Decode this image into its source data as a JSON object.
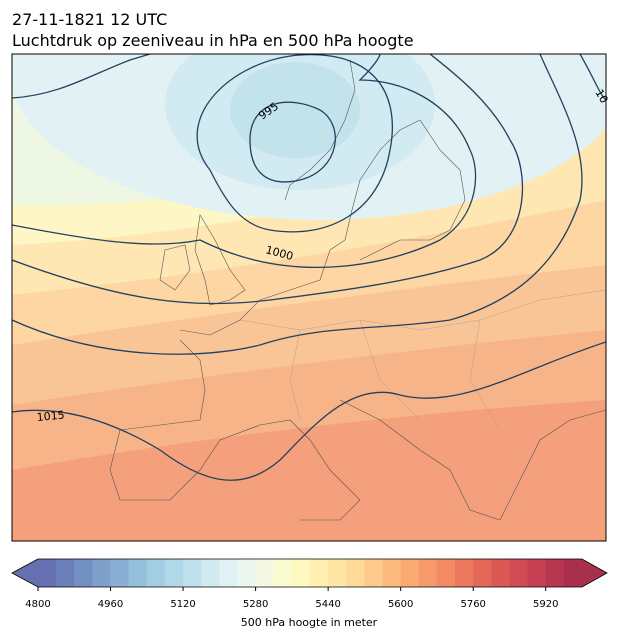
{
  "header": {
    "datetime": "27-11-1821 12 UTC",
    "title": "Luchtdruk op zeeniveau in hPa en 500 hPa hoogte"
  },
  "map": {
    "contour_labels": [
      995,
      1000,
      1015,
      "10"
    ]
  },
  "colorbar": {
    "label": "500 hPa hoogte in meter",
    "lim": [
      4800,
      6000
    ],
    "ticks": [
      4800,
      4960,
      5120,
      5280,
      5440,
      5600,
      5760,
      5920
    ],
    "colors": [
      "#6570b0",
      "#6b80b9",
      "#7390c2",
      "#7ea0cb",
      "#89b0d4",
      "#95c0dc",
      "#a3cde3",
      "#b1d8e9",
      "#c0e2ee",
      "#d0eaf2",
      "#dff1f3",
      "#ebf6ef",
      "#f5f9e3",
      "#fbfbd2",
      "#fff8c0",
      "#fff0b1",
      "#fee6a4",
      "#fed998",
      "#fdca8b",
      "#fcba7f",
      "#fbaa73",
      "#f79a6b",
      "#f28a63",
      "#ec795d",
      "#e46858",
      "#db5955",
      "#d04b54",
      "#c44052",
      "#b73750",
      "#a9304d"
    ]
  }
}
